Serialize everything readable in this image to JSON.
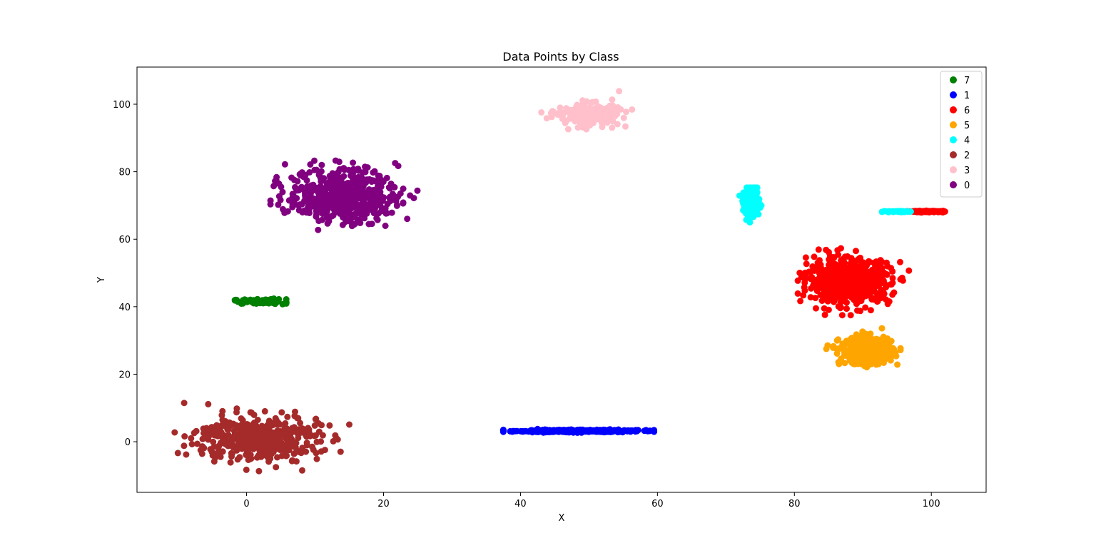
{
  "chart_data": {
    "type": "scatter",
    "title": "Data Points by Class",
    "xlabel": "X",
    "ylabel": "Y",
    "xlim": [
      -16,
      108
    ],
    "ylim": [
      -15,
      111
    ],
    "xticks": [
      0,
      20,
      40,
      60,
      80,
      100
    ],
    "yticks": [
      0,
      20,
      40,
      60,
      80,
      100
    ],
    "grid": false,
    "legend_position": "top-right",
    "series": [
      {
        "name": "7",
        "color": "#008000",
        "clusters": [
          {
            "cx": 2.0,
            "cy": 41.5,
            "sx": 2.0,
            "sy": 0.35,
            "n": 90,
            "range_x": [
              -5.0,
              5.8
            ],
            "range_y": [
              40.6,
              42.4
            ]
          }
        ]
      },
      {
        "name": "1",
        "color": "#0000ff",
        "clusters": [
          {
            "cx": 48.0,
            "cy": 3.2,
            "sx": 4.5,
            "sy": 0.2,
            "n": 320,
            "range_x": [
              37.5,
              59.5
            ],
            "range_y": [
              2.6,
              3.8
            ]
          }
        ]
      },
      {
        "name": "6",
        "color": "#ff0000",
        "clusters": [
          {
            "cx": 88.0,
            "cy": 47.5,
            "sx": 3.0,
            "sy": 3.3,
            "n": 650,
            "range_x": [
              80.5,
              97.8
            ],
            "range_y": [
              37.5,
              62.8
            ]
          },
          {
            "cx": 99.5,
            "cy": 68.2,
            "sx": 1.2,
            "sy": 0.1,
            "n": 90,
            "range_x": [
              96.5,
              102.0
            ],
            "range_y": [
              67.8,
              68.6
            ]
          }
        ]
      },
      {
        "name": "5",
        "color": "#ffa500",
        "clusters": [
          {
            "cx": 90.5,
            "cy": 27.0,
            "sx": 1.9,
            "sy": 2.0,
            "n": 420,
            "range_x": [
              83.5,
              95.5
            ],
            "range_y": [
              20.5,
              37.0
            ]
          }
        ]
      },
      {
        "name": "4",
        "color": "#00ffff",
        "clusters": [
          {
            "cx": 73.7,
            "cy": 70.5,
            "sx": 0.6,
            "sy": 2.0,
            "n": 220,
            "range_x": [
              72.0,
              75.5
            ],
            "range_y": [
              65.0,
              75.3
            ]
          },
          {
            "cx": 95.5,
            "cy": 68.2,
            "sx": 1.0,
            "sy": 0.1,
            "n": 30,
            "range_x": [
              92.8,
              97.0
            ],
            "range_y": [
              67.8,
              68.6
            ]
          }
        ]
      },
      {
        "name": "2",
        "color": "#a52a2a",
        "clusters": [
          {
            "cx": 1.5,
            "cy": 1.0,
            "sx": 4.5,
            "sy": 3.4,
            "n": 420,
            "range_x": [
              -10.5,
              15.0
            ],
            "range_y": [
              -9.5,
              11.5
            ]
          }
        ]
      },
      {
        "name": "3",
        "color": "#ffc0cb",
        "clusters": [
          {
            "cx": 50.0,
            "cy": 97.0,
            "sx": 2.3,
            "sy": 1.6,
            "n": 230,
            "range_x": [
              41.5,
              56.3
            ],
            "range_y": [
              92.5,
              105.8
            ]
          }
        ]
      },
      {
        "name": "0",
        "color": "#800080",
        "clusters": [
          {
            "cx": 14.0,
            "cy": 73.0,
            "sx": 4.0,
            "sy": 4.0,
            "n": 520,
            "range_x": [
              3.5,
              26.3
            ],
            "range_y": [
              58.5,
              86.5
            ]
          }
        ]
      }
    ]
  }
}
